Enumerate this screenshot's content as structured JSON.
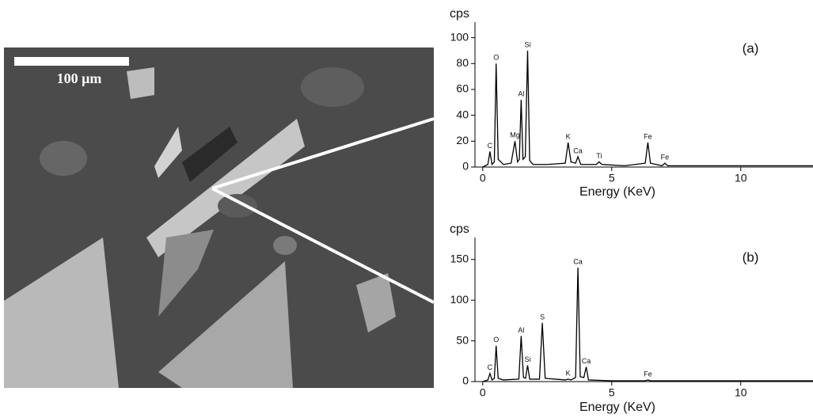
{
  "image": {
    "scale_bar_label": "100 μm"
  },
  "chart_data": [
    {
      "type": "line",
      "panel_label": "(a)",
      "ylabel": "cps",
      "xlabel": "Energy (KeV)",
      "color": "#000000",
      "x": [
        0,
        0.2,
        0.28,
        0.36,
        0.45,
        0.52,
        0.6,
        0.7,
        0.8,
        1.1,
        1.25,
        1.35,
        1.42,
        1.49,
        1.56,
        1.65,
        1.74,
        1.82,
        1.95,
        2.5,
        3.2,
        3.31,
        3.42,
        3.6,
        3.69,
        3.8,
        4.4,
        4.51,
        4.62,
        5.5,
        6.3,
        6.4,
        6.5,
        6.95,
        7.06,
        7.17,
        8,
        10,
        12.8
      ],
      "values": [
        0,
        2,
        12,
        2,
        4,
        80,
        6,
        4,
        2,
        3,
        20,
        4,
        6,
        52,
        6,
        8,
        90,
        5,
        2,
        2,
        3,
        19,
        4,
        3,
        8,
        2,
        2,
        4,
        2,
        1,
        3,
        19,
        3,
        1,
        3,
        1,
        1,
        1,
        1
      ],
      "peak_labels": [
        {
          "text": "C",
          "x": 0.28,
          "y": 12
        },
        {
          "text": "O",
          "x": 0.52,
          "y": 80
        },
        {
          "text": "Mg",
          "x": 1.25,
          "y": 20
        },
        {
          "text": "Al",
          "x": 1.49,
          "y": 52
        },
        {
          "text": "Si",
          "x": 1.74,
          "y": 90
        },
        {
          "text": "K",
          "x": 3.31,
          "y": 19
        },
        {
          "text": "Ca",
          "x": 3.69,
          "y": 8
        },
        {
          "text": "Ti",
          "x": 4.51,
          "y": 4
        },
        {
          "text": "Fe",
          "x": 6.4,
          "y": 19
        },
        {
          "text": "Fe",
          "x": 7.06,
          "y": 3
        }
      ],
      "xlim": [
        -0.3,
        12.8
      ],
      "xticks": [
        0,
        5,
        10
      ],
      "ylim": [
        0,
        112
      ],
      "yticks": [
        0,
        20,
        40,
        60,
        80,
        100
      ]
    },
    {
      "type": "line",
      "panel_label": "(b)",
      "ylabel": "cps",
      "xlabel": "Energy (KeV)",
      "color": "#000000",
      "x": [
        0,
        0.2,
        0.28,
        0.36,
        0.45,
        0.52,
        0.6,
        0.8,
        1.4,
        1.49,
        1.58,
        1.66,
        1.74,
        1.82,
        2.2,
        2.31,
        2.42,
        3.2,
        3.31,
        3.42,
        3.6,
        3.69,
        3.78,
        3.92,
        4.01,
        4.1,
        5,
        6.3,
        6.4,
        6.5,
        8,
        12.8
      ],
      "values": [
        0,
        2,
        10,
        2,
        4,
        44,
        4,
        2,
        3,
        56,
        5,
        4,
        20,
        3,
        3,
        72,
        4,
        2,
        3,
        2,
        5,
        140,
        6,
        5,
        18,
        2,
        1,
        1,
        2,
        1,
        1,
        1
      ],
      "peak_labels": [
        {
          "text": "C",
          "x": 0.28,
          "y": 10
        },
        {
          "text": "O",
          "x": 0.52,
          "y": 44
        },
        {
          "text": "Al",
          "x": 1.49,
          "y": 56
        },
        {
          "text": "Si",
          "x": 1.74,
          "y": 20
        },
        {
          "text": "S",
          "x": 2.31,
          "y": 72
        },
        {
          "text": "K",
          "x": 3.31,
          "y": 3
        },
        {
          "text": "Ca",
          "x": 3.69,
          "y": 140
        },
        {
          "text": "Ca",
          "x": 4.01,
          "y": 18
        },
        {
          "text": "Fe",
          "x": 6.4,
          "y": 2
        }
      ],
      "xlim": [
        -0.3,
        12.8
      ],
      "xticks": [
        0,
        5,
        10
      ],
      "ylim": [
        0,
        177
      ],
      "yticks": [
        0,
        50,
        100,
        150
      ]
    }
  ]
}
